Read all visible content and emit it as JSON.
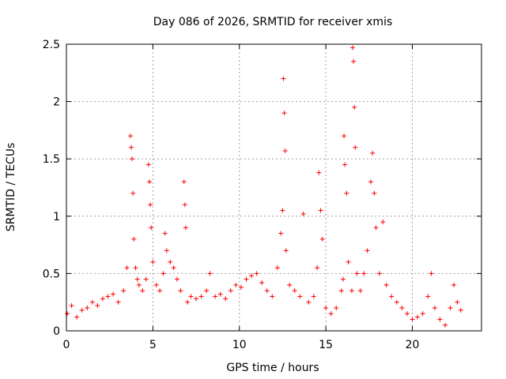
{
  "chart_data": {
    "type": "scatter",
    "title": "Day 086 of 2026, SRMTID for receiver xmis",
    "xlabel": "GPS time / hours",
    "ylabel": "SRMTID / TECUs",
    "xlim": [
      0,
      24
    ],
    "ylim": [
      0,
      2.5
    ],
    "xticks": [
      0,
      5,
      10,
      15,
      20
    ],
    "yticks": [
      0,
      0.5,
      1,
      1.5,
      2,
      2.5
    ],
    "grid": true,
    "legend": "none",
    "marker": "plus",
    "color": "#ff0000",
    "series": [
      {
        "name": "SRMTID",
        "x": [
          0.05,
          0.3,
          0.6,
          0.9,
          1.2,
          1.5,
          1.8,
          2.1,
          2.4,
          2.7,
          3.0,
          3.3,
          3.5,
          3.7,
          3.75,
          3.8,
          3.85,
          3.9,
          4.0,
          4.1,
          4.2,
          4.4,
          4.6,
          4.75,
          4.8,
          4.85,
          4.9,
          5.0,
          5.2,
          5.4,
          5.6,
          5.7,
          5.8,
          6.0,
          6.2,
          6.4,
          6.6,
          6.8,
          6.85,
          6.9,
          7.0,
          7.2,
          7.5,
          7.8,
          8.1,
          8.3,
          8.6,
          8.9,
          9.2,
          9.5,
          9.8,
          10.1,
          10.4,
          10.7,
          11.0,
          11.3,
          11.6,
          11.9,
          12.2,
          12.4,
          12.5,
          12.55,
          12.6,
          12.65,
          12.7,
          12.9,
          13.2,
          13.5,
          13.7,
          14.0,
          14.3,
          14.5,
          14.6,
          14.7,
          14.8,
          15.0,
          15.3,
          15.6,
          15.9,
          16.0,
          16.05,
          16.1,
          16.2,
          16.3,
          16.5,
          16.55,
          16.6,
          16.65,
          16.7,
          16.8,
          17.0,
          17.2,
          17.4,
          17.6,
          17.7,
          17.8,
          17.9,
          18.1,
          18.3,
          18.5,
          18.8,
          19.1,
          19.4,
          19.7,
          20.0,
          20.3,
          20.6,
          20.9,
          21.1,
          21.3,
          21.6,
          21.9,
          22.2,
          22.4,
          22.6,
          22.8
        ],
        "values": [
          0.15,
          0.22,
          0.12,
          0.18,
          0.2,
          0.25,
          0.22,
          0.28,
          0.3,
          0.32,
          0.25,
          0.35,
          0.55,
          1.7,
          1.6,
          1.5,
          1.2,
          0.8,
          0.55,
          0.45,
          0.4,
          0.35,
          0.45,
          1.45,
          1.3,
          1.1,
          0.9,
          0.6,
          0.4,
          0.35,
          0.5,
          0.85,
          0.7,
          0.6,
          0.55,
          0.45,
          0.35,
          1.3,
          1.1,
          0.9,
          0.25,
          0.3,
          0.28,
          0.3,
          0.35,
          0.5,
          0.3,
          0.32,
          0.28,
          0.35,
          0.4,
          0.38,
          0.45,
          0.48,
          0.5,
          0.42,
          0.35,
          0.3,
          0.55,
          0.85,
          1.05,
          2.2,
          1.9,
          1.57,
          0.7,
          0.4,
          0.35,
          0.3,
          1.02,
          0.25,
          0.3,
          0.55,
          1.38,
          1.05,
          0.8,
          0.2,
          0.15,
          0.2,
          0.35,
          0.45,
          1.7,
          1.45,
          1.2,
          0.6,
          0.35,
          2.47,
          2.35,
          1.95,
          1.6,
          0.5,
          0.35,
          0.5,
          0.7,
          1.3,
          1.55,
          1.2,
          0.9,
          0.5,
          0.95,
          0.4,
          0.3,
          0.25,
          0.2,
          0.15,
          0.1,
          0.12,
          0.15,
          0.3,
          0.5,
          0.2,
          0.1,
          0.05,
          0.2,
          0.4,
          0.25,
          0.18
        ]
      }
    ]
  }
}
